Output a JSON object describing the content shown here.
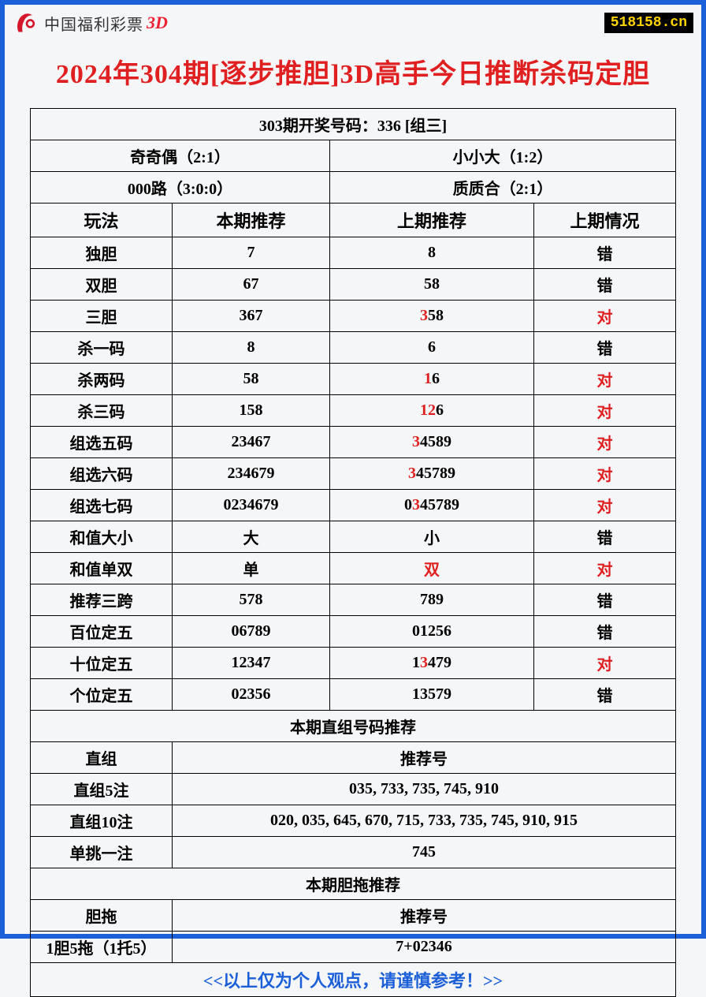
{
  "header": {
    "logo_text": "中国福利彩票",
    "logo_suffix": "3D",
    "site_tag": "518158.cn"
  },
  "title": "2024年304期[逐步推胆]3D高手今日推断杀码定胆",
  "last_draw": "303期开奖号码：336 [组三]",
  "summary": {
    "cell1": "奇奇偶（2:1）",
    "cell2": "小小大（1:2）",
    "cell3": "000路（3:0:0）",
    "cell4": "质质合（2:1）"
  },
  "columns": {
    "c1": "玩法",
    "c2": "本期推荐",
    "c3": "上期推荐",
    "c4": "上期情况"
  },
  "rows": [
    {
      "name": "独胆",
      "now": "7",
      "prev": [
        [
          "8",
          false
        ]
      ],
      "status": "错",
      "correct": false
    },
    {
      "name": "双胆",
      "now": "67",
      "prev": [
        [
          "58",
          false
        ]
      ],
      "status": "错",
      "correct": false
    },
    {
      "name": "三胆",
      "now": "367",
      "prev": [
        [
          "3",
          true
        ],
        [
          "58",
          false
        ]
      ],
      "status": "对",
      "correct": true
    },
    {
      "name": "杀一码",
      "now": "8",
      "prev": [
        [
          "6",
          false
        ]
      ],
      "status": "错",
      "correct": false
    },
    {
      "name": "杀两码",
      "now": "58",
      "prev": [
        [
          "1",
          true
        ],
        [
          "6",
          false
        ]
      ],
      "status": "对",
      "correct": true
    },
    {
      "name": "杀三码",
      "now": "158",
      "prev": [
        [
          "1",
          true
        ],
        [
          "2",
          true
        ],
        [
          "6",
          false
        ]
      ],
      "status": "对",
      "correct": true
    },
    {
      "name": "组选五码",
      "now": "23467",
      "prev": [
        [
          "3",
          true
        ],
        [
          "4589",
          false
        ]
      ],
      "status": "对",
      "correct": true
    },
    {
      "name": "组选六码",
      "now": "234679",
      "prev": [
        [
          "3",
          true
        ],
        [
          "45789",
          false
        ]
      ],
      "status": "对",
      "correct": true
    },
    {
      "name": "组选七码",
      "now": "0234679",
      "prev": [
        [
          "0",
          false
        ],
        [
          "3",
          true
        ],
        [
          "45789",
          false
        ]
      ],
      "status": "对",
      "correct": true
    },
    {
      "name": "和值大小",
      "now": "大",
      "prev": [
        [
          "小",
          false
        ]
      ],
      "status": "错",
      "correct": false
    },
    {
      "name": "和值单双",
      "now": "单",
      "prev": [
        [
          "双",
          true
        ]
      ],
      "status": "对",
      "correct": true
    },
    {
      "name": "推荐三跨",
      "now": "578",
      "prev": [
        [
          "789",
          false
        ]
      ],
      "status": "错",
      "correct": false
    },
    {
      "name": "百位定五",
      "now": "06789",
      "prev": [
        [
          "01256",
          false
        ]
      ],
      "status": "错",
      "correct": false
    },
    {
      "name": "十位定五",
      "now": "12347",
      "prev": [
        [
          "1",
          false
        ],
        [
          "3",
          true
        ],
        [
          "479",
          false
        ]
      ],
      "status": "对",
      "correct": true
    },
    {
      "name": "个位定五",
      "now": "02356",
      "prev": [
        [
          "13579",
          false
        ]
      ],
      "status": "错",
      "correct": false
    }
  ],
  "section1_title": "本期直组号码推荐",
  "section1_header_left": "直组",
  "section1_header_right": "推荐号",
  "section1_rows": [
    {
      "name": "直组5注",
      "val": "035, 733, 735, 745, 910"
    },
    {
      "name": "直组10注",
      "val": "020, 035, 645, 670, 715, 733, 735, 745, 910, 915"
    },
    {
      "name": "单挑一注",
      "val": "745"
    }
  ],
  "section2_title": "本期胆拖推荐",
  "section2_header_left": "胆拖",
  "section2_header_right": "推荐号",
  "section2_rows": [
    {
      "name": "1胆5拖（1托5）",
      "val": "7+02346"
    }
  ],
  "footer": "<<以上仅为个人观点，请谨慎参考！>>",
  "colors": {
    "border": "#1b5fd9",
    "title": "#e02020",
    "correct": "#e02020",
    "text": "#000000",
    "tag_bg": "#000000",
    "tag_fg": "#ffd400"
  }
}
